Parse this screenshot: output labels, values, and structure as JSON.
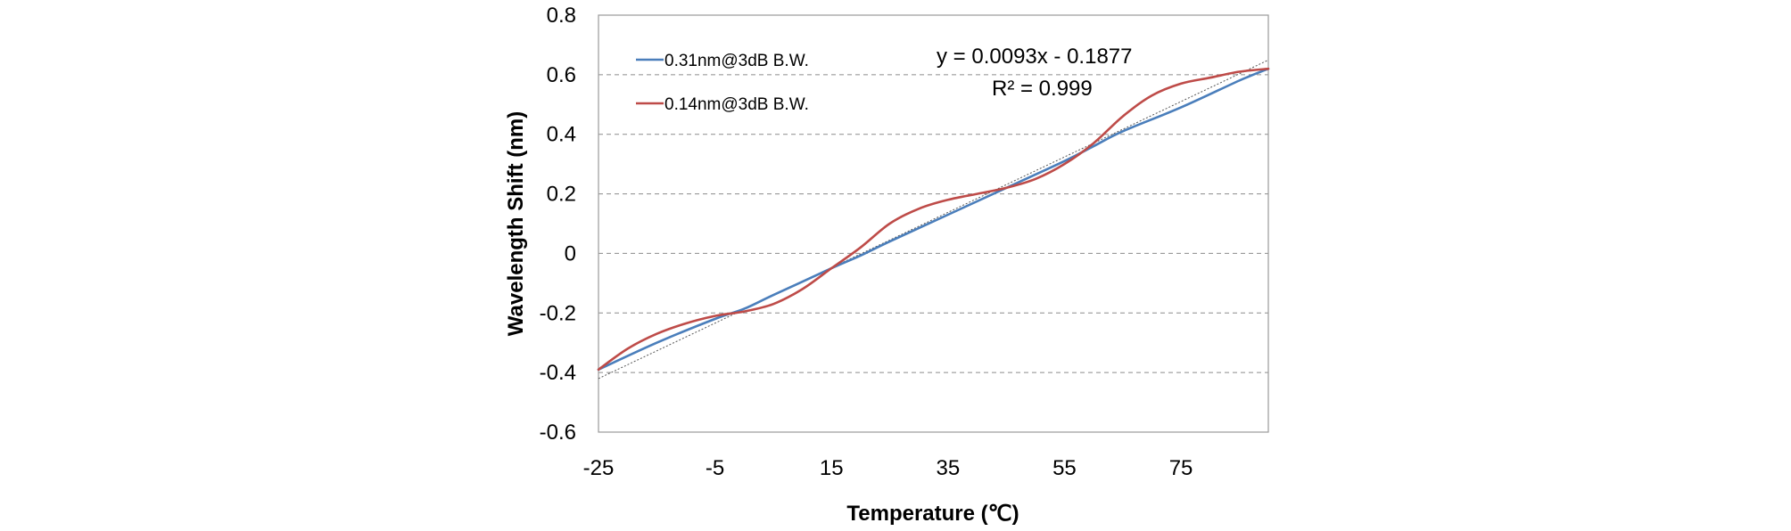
{
  "chart_data": {
    "type": "line",
    "xlabel": "Temperature (℃)",
    "ylabel": "Wavelength Shift (nm)",
    "xlim": [
      -25,
      90
    ],
    "ylim": [
      -0.6,
      0.8
    ],
    "x_ticks": [
      "-25",
      "-5",
      "15",
      "35",
      "55",
      "75"
    ],
    "y_ticks": [
      "0.8",
      "0.6",
      "0.4",
      "0.2",
      "0",
      "-0.2",
      "-0.4",
      "-0.6"
    ],
    "grid": "horizontal dashed",
    "legend_position": "top-left",
    "series": [
      {
        "name": "0.31nm@3dB B.W.",
        "color": "#4a7ebb",
        "x": [
          -25,
          -15,
          -5,
          0,
          5,
          15,
          20,
          25,
          35,
          45,
          55,
          60,
          65,
          75,
          85,
          90
        ],
        "y": [
          -0.39,
          -0.3,
          -0.22,
          -0.186,
          -0.14,
          -0.05,
          -0.007,
          0.04,
          0.13,
          0.22,
          0.31,
          0.36,
          0.41,
          0.49,
          0.58,
          0.62
        ]
      },
      {
        "name": "0.14nm@3dB B.W.",
        "color": "#be4b48",
        "x": [
          -25,
          -20,
          -15,
          -10,
          -5,
          0,
          5,
          10,
          15,
          20,
          25,
          30,
          35,
          40,
          45,
          50,
          55,
          60,
          65,
          70,
          75,
          80,
          85,
          90
        ],
        "y": [
          -0.39,
          -0.32,
          -0.27,
          -0.235,
          -0.21,
          -0.195,
          -0.17,
          -0.12,
          -0.05,
          0.02,
          0.1,
          0.15,
          0.18,
          0.2,
          0.22,
          0.25,
          0.3,
          0.37,
          0.46,
          0.53,
          0.57,
          0.59,
          0.61,
          0.62
        ]
      }
    ],
    "trendline": {
      "slope": 0.0093,
      "intercept": -0.1877,
      "color": "#555555",
      "equation": "y = 0.0093x - 0.1877",
      "r_squared": "R² = 0.999"
    }
  }
}
